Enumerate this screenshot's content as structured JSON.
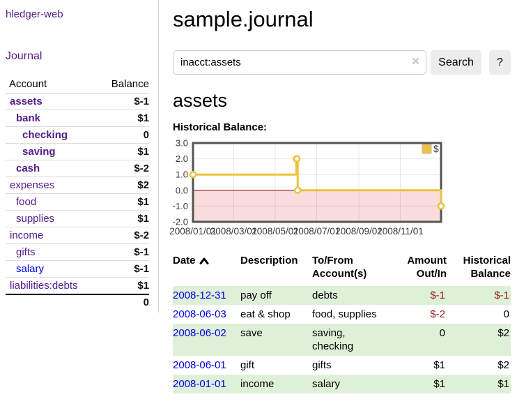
{
  "app": {
    "title": "hledger-web",
    "nav_journal": "Journal"
  },
  "sidebar": {
    "header": {
      "account": "Account",
      "balance": "Balance"
    },
    "accounts": [
      {
        "name": "assets",
        "balance": "$-1",
        "level": 1,
        "bold": true,
        "balance_style": "neg-strong",
        "link_color": "purple"
      },
      {
        "name": "bank",
        "balance": "$1",
        "level": 2,
        "bold": true,
        "balance_style": "pos",
        "link_color": "purple"
      },
      {
        "name": "checking",
        "balance": "0",
        "level": 3,
        "bold": true,
        "balance_style": "pos",
        "link_color": "purple"
      },
      {
        "name": "saving",
        "balance": "$1",
        "level": 3,
        "bold": true,
        "balance_style": "pos",
        "link_color": "purple"
      },
      {
        "name": "cash",
        "balance": "$-2",
        "level": 2,
        "bold": true,
        "balance_style": "neg-strong",
        "link_color": "purple"
      },
      {
        "name": "expenses",
        "balance": "$2",
        "level": 1,
        "bold": false,
        "balance_style": "pos",
        "link_color": "purple"
      },
      {
        "name": "food",
        "balance": "$1",
        "level": 2,
        "bold": false,
        "balance_style": "pos",
        "link_color": "purple"
      },
      {
        "name": "supplies",
        "balance": "$1",
        "level": 2,
        "bold": false,
        "balance_style": "pos",
        "link_color": "purple"
      },
      {
        "name": "income",
        "balance": "$-2",
        "level": 1,
        "bold": false,
        "balance_style": "neg-soft",
        "link_color": "purple"
      },
      {
        "name": "gifts",
        "balance": "$-1",
        "level": 2,
        "bold": false,
        "balance_style": "neg-soft",
        "link_color": "purple"
      },
      {
        "name": "salary",
        "balance": "$-1",
        "level": 2,
        "bold": false,
        "balance_style": "neg-soft",
        "link_color": "blue"
      },
      {
        "name": "liabilities:debts",
        "balance": "$1",
        "level": 1,
        "bold": false,
        "balance_style": "pos",
        "link_color": "purple"
      }
    ],
    "total": "0"
  },
  "header": {
    "title": "sample.journal"
  },
  "search": {
    "value": "inacct:assets",
    "clear_icon": "✕",
    "button_label": "Search",
    "help_label": "?"
  },
  "account_page": {
    "title": "assets",
    "chart_label": "Historical Balance:"
  },
  "chart_data": {
    "type": "line",
    "title": "Historical Balance:",
    "step": true,
    "series": [
      {
        "name": "$",
        "color": "#edc240",
        "points": [
          {
            "date": "2008-01-01",
            "day": 0,
            "value": 1
          },
          {
            "date": "2008-06-01",
            "day": 152,
            "value": 2
          },
          {
            "date": "2008-06-02",
            "day": 153,
            "value": 2
          },
          {
            "date": "2008-06-03",
            "day": 154,
            "value": 0
          },
          {
            "date": "2008-12-31",
            "day": 365,
            "value": -1
          }
        ]
      }
    ],
    "x_ticks": [
      "2008/01/01",
      "2008/03/01",
      "2008/05/01",
      "2008/07/01",
      "2008/09/01",
      "2008/11/01"
    ],
    "x_tick_days": [
      0,
      60,
      121,
      182,
      244,
      305
    ],
    "x_range_days": [
      0,
      365
    ],
    "y_ticks": [
      3.0,
      2.0,
      1.0,
      0.0,
      -1.0,
      -2.0
    ],
    "ylim": [
      -2,
      3
    ],
    "grid": true,
    "legend": {
      "label": "$",
      "position": "top-right"
    },
    "negative_region_fill": "#fbdcdc",
    "zero_line_color": "#7a0000",
    "border_color": "#545454"
  },
  "transactions": {
    "columns": {
      "date": "Date",
      "description": "Description",
      "accounts": "To/From\nAccount(s)",
      "amount": "Amount\nOut/In",
      "balance": "Historical\nBalance"
    },
    "sort_icon": "chevron-up",
    "rows": [
      {
        "date": "2008-12-31",
        "description": "pay off",
        "accounts": "debts",
        "amount": "$-1",
        "balance": "$-1",
        "amount_neg": true,
        "balance_neg": true,
        "shaded": true
      },
      {
        "date": "2008-06-03",
        "description": "eat & shop",
        "accounts": "food, supplies",
        "amount": "$-2",
        "balance": "0",
        "amount_neg": true,
        "balance_neg": false,
        "shaded": false
      },
      {
        "date": "2008-06-02",
        "description": "save",
        "accounts": "saving,\nchecking",
        "amount": "0",
        "balance": "$2",
        "amount_neg": false,
        "balance_neg": false,
        "shaded": true
      },
      {
        "date": "2008-06-01",
        "description": "gift",
        "accounts": "gifts",
        "amount": "$1",
        "balance": "$2",
        "amount_neg": false,
        "balance_neg": false,
        "shaded": false
      },
      {
        "date": "2008-01-01",
        "description": "income",
        "accounts": "salary",
        "amount": "$1",
        "balance": "$1",
        "amount_neg": false,
        "balance_neg": false,
        "shaded": true
      }
    ]
  },
  "colors": {
    "link_purple": "#551a8b",
    "link_blue": "#0000ee",
    "neg_strong": "#96191f",
    "neg_soft": "#bf757a",
    "row_stripe_green": "#dff0d8",
    "series_gold": "#edc240",
    "button_bg": "#ececec"
  }
}
